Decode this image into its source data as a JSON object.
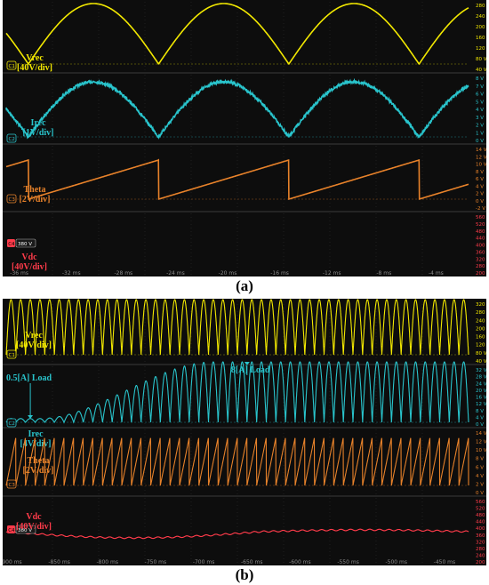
{
  "panels": [
    {
      "label": "(a)",
      "time_ticks": [
        "-36 ms",
        "-32 ms",
        "-28 ms",
        "-24 ms",
        "-20 ms",
        "-16 ms",
        "-12 ms",
        "-8 ms",
        "-4 ms"
      ],
      "time_range_ms": [
        -37,
        -1.5
      ],
      "channels": [
        {
          "id": "c1",
          "badge": "C1",
          "name": "Vrec",
          "scale": "[40V/div]",
          "color": "#f2e800",
          "ticks": [
            "280 V",
            "240 V",
            "200 V",
            "160 V",
            "120 V",
            "80 V",
            "40 V"
          ],
          "waveform": "rectified_sine",
          "period_ms": 10,
          "zero_ms": -35.3,
          "amplitude": 1
        },
        {
          "id": "c2",
          "badge": "C2",
          "name": "Irec",
          "scale": "[1V/div]",
          "color": "#29c4cc",
          "ticks": [
            "8 V",
            "7 V",
            "6 V",
            "5 V",
            "4 V",
            "3 V",
            "2 V",
            "1 V",
            "0 V"
          ],
          "waveform": "rectified_sine_noisy",
          "period_ms": 10,
          "zero_ms": -35.3,
          "amplitude": 6.7
        },
        {
          "id": "c3",
          "badge": "C3",
          "name": "Theta",
          "scale": "[2V/div]",
          "color": "#e8822a",
          "ticks": [
            "14 V",
            "12 V",
            "10 V",
            "8 V",
            "6 V",
            "4 V",
            "2 V",
            "0 V",
            "-2 V"
          ],
          "waveform": "sawtooth",
          "period_ms": 10,
          "zero_ms": -35.3,
          "amplitude": 10
        },
        {
          "id": "c4",
          "badge": "C4",
          "name": "Vdc",
          "scale": "[40V/div]",
          "color": "#ff3b4a",
          "level_badge": "380 V",
          "ticks": [
            "560 V",
            "520 V",
            "480 V",
            "440 V",
            "400 V",
            "360 V",
            "320 V",
            "280 V",
            "200 V"
          ],
          "waveform": "dc_ripple",
          "level_v": 380
        }
      ]
    },
    {
      "label": "(b)",
      "time_ticks": [
        "-900 ms",
        "-850 ms",
        "-800 ms",
        "-750 ms",
        "-700 ms",
        "-650 ms",
        "-600 ms",
        "-550 ms",
        "-500 ms",
        "-450 ms"
      ],
      "time_range_ms": [
        -905,
        -425
      ],
      "channels": [
        {
          "id": "c1",
          "badge": "C1",
          "name": "Vrec",
          "scale": "[40V/div]",
          "color": "#f2e800",
          "ticks": [
            "320 V",
            "280 V",
            "240 V",
            "200 V",
            "160 V",
            "120 V",
            "80 V",
            "40 V"
          ],
          "waveform": "rectified_sine",
          "period_ms": 10,
          "zero_ms": -905,
          "amplitude": 1
        },
        {
          "id": "c2",
          "badge": "C2",
          "name": "Irec",
          "scale": "[4V/div]",
          "color": "#29c4cc",
          "ticks": [
            "32 V",
            "28 V",
            "24 V",
            "20 V",
            "16 V",
            "12 V",
            "8 V",
            "4 V",
            "0 V"
          ],
          "waveform": "ramp_load",
          "period_ms": 10,
          "zero_ms": -905,
          "load_start_ms": -870,
          "load_full_ms": -690,
          "low_amp": 0.5,
          "high_amp": 8,
          "annotations": [
            {
              "text": "0.5[A]  Load",
              "at_ms": -880
            },
            {
              "text": "8[A] Load",
              "at_ms": -655
            }
          ]
        },
        {
          "id": "c3",
          "badge": "C3",
          "name": "Theta",
          "scale": "[2V/div]",
          "color": "#e8822a",
          "ticks": [
            "14 V",
            "12 V",
            "10 V",
            "8 V",
            "6 V",
            "4 V",
            "2 V",
            "0 V"
          ],
          "waveform": "sawtooth",
          "period_ms": 10,
          "zero_ms": -905,
          "amplitude": 10
        },
        {
          "id": "c4",
          "badge": "C4",
          "name": "Vdc",
          "scale": "[40V/div]",
          "color": "#ff3b4a",
          "level_badge": "380 V",
          "ticks": [
            "560 V",
            "520 V",
            "480 V",
            "440 V",
            "400 V",
            "360 V",
            "320 V",
            "280 V",
            "240 V",
            "200 V"
          ],
          "waveform": "dc_sag",
          "level_v": 380
        }
      ]
    }
  ]
}
